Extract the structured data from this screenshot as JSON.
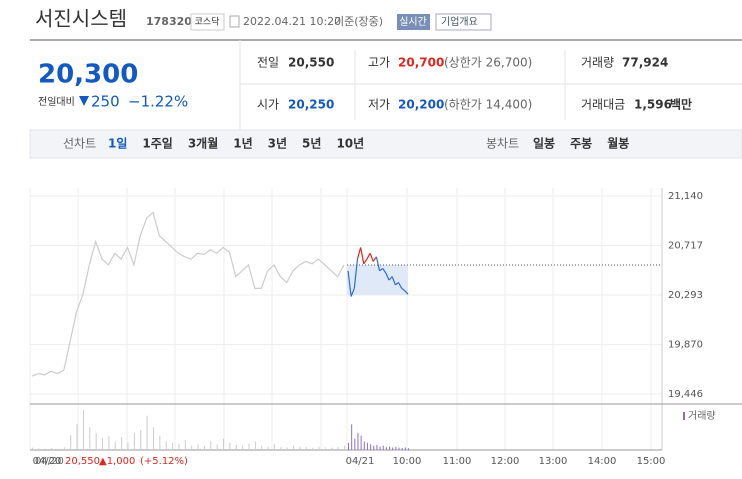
{
  "header": {
    "name": "서진시스템",
    "code": "178320",
    "market": "코스닥",
    "datetime": "2022.04.21 10:20",
    "basis": "기준(장중)",
    "realtime": "실시간",
    "overview": "기업개요"
  },
  "price": {
    "current": "20,300",
    "change_label": "전일대비",
    "change": "250",
    "change_rate": "−1.22%"
  },
  "summary": {
    "prev": {
      "label": "전일",
      "value": "20,550"
    },
    "open": {
      "label": "시가",
      "value": "20,250"
    },
    "high": {
      "label": "고가",
      "value": "20,700",
      "limit": "(상한가 26,700)"
    },
    "low": {
      "label": "저가",
      "value": "20,200",
      "limit": "(하한가 14,400)"
    },
    "volume": {
      "label": "거래량",
      "value": "77,924"
    },
    "amount": {
      "label": "거래대금",
      "value": "1,596",
      "unit": "백만"
    }
  },
  "tabs": {
    "line_label": "선차트",
    "line_items": [
      "1일",
      "1주일",
      "3개월",
      "1년",
      "3년",
      "5년",
      "10년"
    ],
    "candle_label": "봉차트",
    "candle_items": [
      "일봉",
      "주봉",
      "월봉"
    ]
  },
  "chart_data": {
    "type": "line",
    "ylim": [
      19446,
      21140
    ],
    "yticks": [
      {
        "value": 21140,
        "label": "21,140"
      },
      {
        "value": 20717,
        "label": "20,717"
      },
      {
        "value": 20293,
        "label": "20,293"
      },
      {
        "value": 19870,
        "label": "19,870"
      },
      {
        "value": 19446,
        "label": "19,446"
      }
    ],
    "prev_close": 20550,
    "prev_day": [
      19600,
      19620,
      19610,
      19640,
      19620,
      19650,
      19900,
      20150,
      20300,
      20550,
      20750,
      20600,
      20550,
      20650,
      20600,
      20700,
      20550,
      20800,
      20950,
      21000,
      20800,
      20750,
      20700,
      20650,
      20620,
      20600,
      20650,
      20640,
      20680,
      20650,
      20700,
      20660,
      20450,
      20500,
      20550,
      20350,
      20350,
      20500,
      20550,
      20450,
      20400,
      20500,
      20550,
      20580,
      20560,
      20600,
      20550,
      20500,
      20450,
      20550
    ],
    "today": [
      20500,
      20280,
      20350,
      20600,
      20700,
      20560,
      20600,
      20650,
      20580,
      20620,
      20500,
      20520,
      20480,
      20420,
      20450,
      20380,
      20400,
      20350,
      20330,
      20300
    ],
    "prev_volume": [
      800,
      600,
      500,
      700,
      400,
      900,
      5200,
      9000,
      14000,
      8000,
      6000,
      4000,
      5000,
      3000,
      4500,
      2500,
      6000,
      7000,
      12000,
      8000,
      5000,
      3000,
      2500,
      2000,
      3500,
      1500,
      2000,
      1500,
      3000,
      2000,
      4000,
      2500,
      1800,
      1500,
      2200,
      3000,
      1500,
      1200,
      2000,
      1000,
      900,
      1500,
      1200,
      1000,
      800,
      1200,
      900,
      800,
      1000,
      1500
    ],
    "today_volume": [
      2500,
      9000,
      4000,
      6000,
      5000,
      3000,
      2500,
      2000,
      1500,
      1800,
      1200,
      1500,
      1000,
      1200,
      900,
      1100,
      800,
      700,
      900,
      600
    ],
    "xlabels": [
      "04/20",
      "04/21",
      "10:00",
      "11:00",
      "12:00",
      "13:00",
      "14:00",
      "15:00"
    ],
    "volume_legend": "거래량",
    "footer": {
      "date": "04/20",
      "close": "20,550",
      "change": "▲1,000",
      "rate": "(+5.12%)"
    }
  }
}
